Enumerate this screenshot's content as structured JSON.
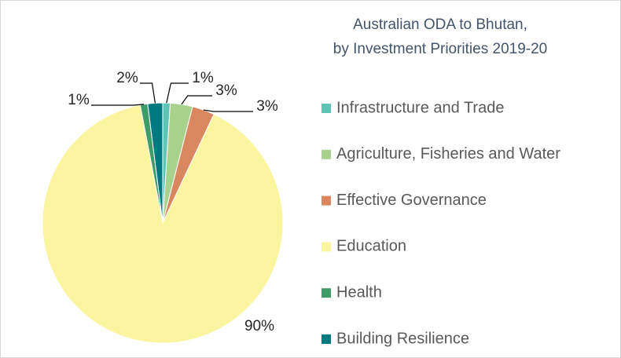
{
  "chart_data": {
    "type": "pie",
    "title": [
      "Australian ODA to Bhutan,",
      "by Investment Priorities 2019-20"
    ],
    "categories": [
      "Infrastructure and Trade",
      "Agriculture, Fisheries and Water",
      "Effective Governance",
      "Education",
      "Health",
      "Building Resilience"
    ],
    "values": [
      1,
      3,
      3,
      90,
      1,
      2
    ],
    "value_labels": [
      "1%",
      "3%",
      "3%",
      "90%",
      "1%",
      "2%"
    ],
    "colors": [
      "#5ec4b6",
      "#a9d18e",
      "#d9875f",
      "#fbf59f",
      "#3f9b67",
      "#007a80"
    ],
    "legend": "right"
  }
}
